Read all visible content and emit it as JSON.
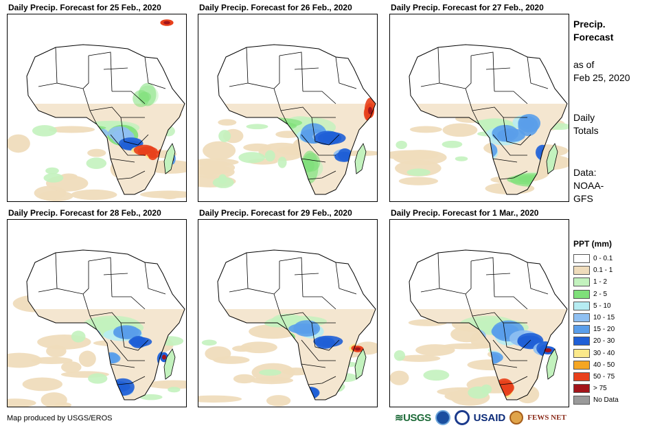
{
  "panels": [
    {
      "title": "Daily Precip. Forecast for 25 Feb., 2020",
      "intensity": 1.0,
      "variant": 0
    },
    {
      "title": "Daily Precip. Forecast for 26 Feb., 2020",
      "intensity": 0.8,
      "variant": 1
    },
    {
      "title": "Daily Precip. Forecast for 27 Feb., 2020",
      "intensity": 0.75,
      "variant": 2
    },
    {
      "title": "Daily Precip. Forecast for 28 Feb., 2020",
      "intensity": 0.95,
      "variant": 3
    },
    {
      "title": "Daily Precip. Forecast for 29 Feb., 2020",
      "intensity": 0.7,
      "variant": 4
    },
    {
      "title": "Daily Precip. Forecast for 1 Mar., 2020",
      "intensity": 0.8,
      "variant": 5
    }
  ],
  "side": {
    "title_line1": "Precip.",
    "title_line2": "Forecast",
    "asof_line1": "as of",
    "asof_line2": "Feb 25, 2020",
    "totals_line1": "Daily",
    "totals_line2": "Totals",
    "data_line1": "Data:",
    "data_line2": "NOAA-",
    "data_line3": "GFS"
  },
  "legend": {
    "title": "PPT (mm)",
    "items": [
      {
        "label": "0 - 0.1",
        "color": "#ffffff"
      },
      {
        "label": "0.1 - 1",
        "color": "#efdcbc"
      },
      {
        "label": "1 - 2",
        "color": "#c3f2be"
      },
      {
        "label": "2 - 5",
        "color": "#7fe07a"
      },
      {
        "label": "5 - 10",
        "color": "#b6ecf2"
      },
      {
        "label": "10 - 15",
        "color": "#8fc0f2"
      },
      {
        "label": "15 - 20",
        "color": "#5a9eea"
      },
      {
        "label": "20 - 30",
        "color": "#1f5fd6"
      },
      {
        "label": "30 - 40",
        "color": "#fbe98a"
      },
      {
        "label": "40 - 50",
        "color": "#f5a623"
      },
      {
        "label": "50 - 75",
        "color": "#e8401c"
      },
      {
        "label": "> 75",
        "color": "#a3141a"
      },
      {
        "label": "No Data",
        "color": "#9a9a9a"
      }
    ]
  },
  "credit": "Map produced by USGS/EROS",
  "logos": {
    "usgs": "≋USGS",
    "usaid": "USAID",
    "fews": "FEWS NET"
  }
}
